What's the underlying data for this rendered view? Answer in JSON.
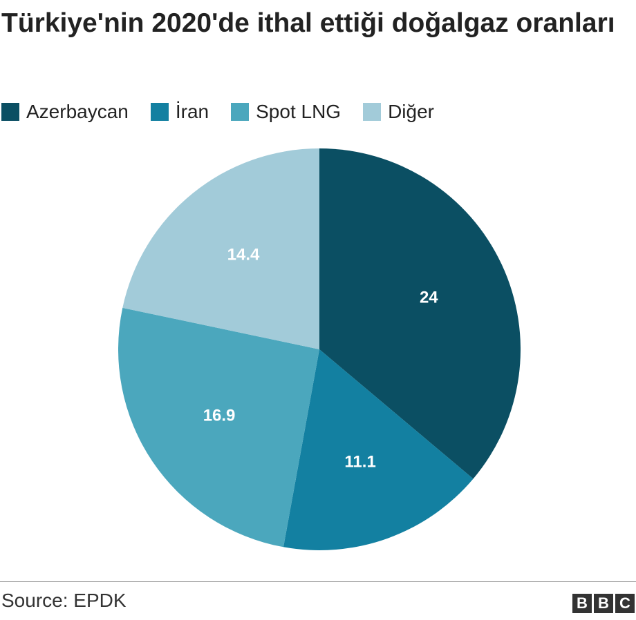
{
  "chart_data": {
    "type": "pie",
    "title": "Türkiye'nin 2020'de ithal ettiği doğalgaz oranları",
    "categories": [
      "Azerbaycan",
      "İran",
      "Spot LNG",
      "Diğer"
    ],
    "values": [
      24,
      11.1,
      16.9,
      14.4
    ],
    "colors": [
      "#0b4f63",
      "#1380a1",
      "#4ba7bd",
      "#a2cbd9"
    ],
    "source": "Source: EPDK",
    "logo": [
      "B",
      "B",
      "C"
    ]
  }
}
